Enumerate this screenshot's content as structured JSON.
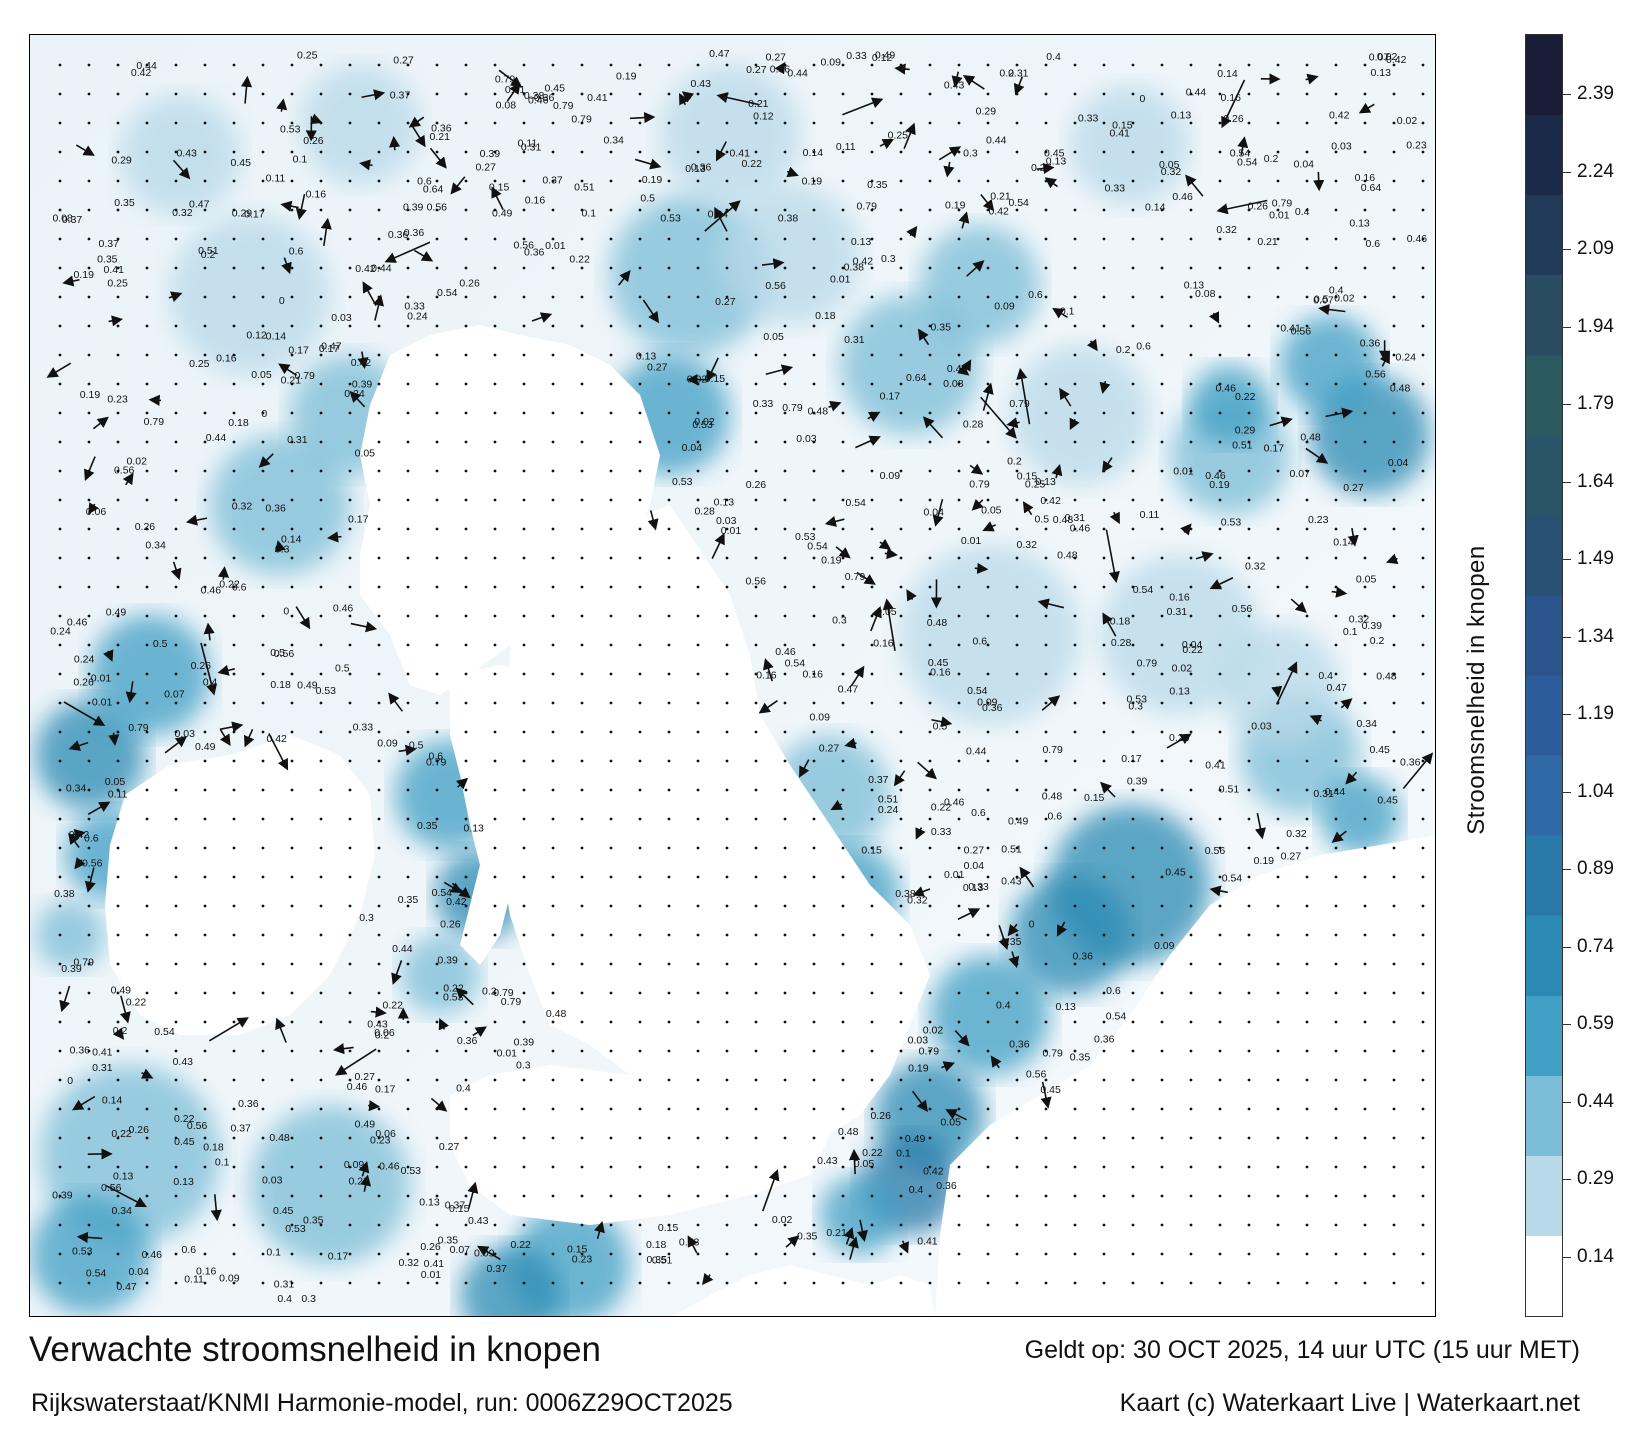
{
  "title": "Verwachte stroomsnelheid in knopen",
  "valid_time": "Geldt op: 30 OCT 2025, 14 uur UTC (15 uur MET)",
  "model_run": "Rijkswaterstaat/KNMI Harmonie-model, run: 0006Z29OCT2025",
  "copyright": "Kaart (c) Waterkaart Live | Waterkaart.net",
  "legend": {
    "title": "Stroomsnelheid in knopen",
    "ticks": [
      "2.39",
      "2.24",
      "2.09",
      "1.94",
      "1.79",
      "1.64",
      "1.49",
      "1.34",
      "1.19",
      "1.04",
      "0.89",
      "0.74",
      "0.59",
      "0.44",
      "0.29",
      "0.14"
    ],
    "colors": [
      "#ffffff",
      "#b8d9e8",
      "#7cbdd7",
      "#3f9fc4",
      "#2a8ab3",
      "#2878a8",
      "#2f6aa7",
      "#2c5c9a",
      "#2a548b",
      "#285174",
      "#2a5568",
      "#2b5a60",
      "#284c62",
      "#223a5a",
      "#1c2a4a",
      "#181c36"
    ]
  },
  "map": {
    "current_labels": [
      "0.15",
      "0.21",
      "0.06",
      "0.25",
      "0.09",
      "0.14",
      "0.13",
      "0.2",
      "0.17",
      "0.11",
      "0.03",
      "0.23",
      "0.12",
      "0.07",
      "0.16",
      "0.05",
      "0.19",
      "0.02",
      "0.18",
      "0.26",
      "0.22",
      "0.1",
      "0.01",
      "0.24",
      "0.08",
      "0.27",
      "0.04",
      "0.29",
      "0.31",
      "0.33",
      "0.3",
      "0.35",
      "0.28",
      "0.32",
      "0.34",
      "0.37",
      "0.4",
      "0.45",
      "0.5",
      "0.38",
      "0.41",
      "0.44",
      "0.47",
      "0.36",
      "0.42",
      "0.54",
      "0.51",
      "0.56",
      "0.39",
      "0.43",
      "0.46",
      "0.49",
      "0.53",
      "0.64",
      "0.79",
      "0.6",
      "0.48",
      "0"
    ]
  }
}
